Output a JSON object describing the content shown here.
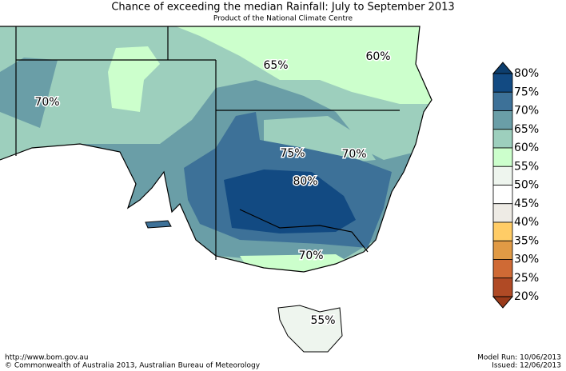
{
  "header": {
    "title": "Chance of exceeding the median Rainfall: July to September 2013",
    "subtitle": "Product of the National Climate Centre"
  },
  "map_labels": [
    "65%",
    "60%",
    "70%",
    "75%",
    "70%",
    "80%",
    "70%",
    "55%"
  ],
  "legend": {
    "labels": [
      "80%",
      "75%",
      "70%",
      "65%",
      "60%",
      "55%",
      "50%",
      "45%",
      "40%",
      "35%",
      "30%",
      "25%",
      "20%"
    ],
    "colors": [
      "#0d3e6e",
      "#124a82",
      "#3d7198",
      "#6a9ea7",
      "#9dcfbd",
      "#ccffcc",
      "#eef5ee",
      "#ffffff",
      "#eeebe5",
      "#ffcc66",
      "#e09a45",
      "#cf6a35",
      "#b04a25",
      "#9a3a1a"
    ]
  },
  "footer": {
    "url": "http://www.bom.gov.au",
    "copyright": "©  Commonwealth of Australia 2013, Australian Bureau of Meteorology",
    "model_run": "Model Run: 10/06/2013",
    "issued": "Issued: 12/06/2013"
  }
}
